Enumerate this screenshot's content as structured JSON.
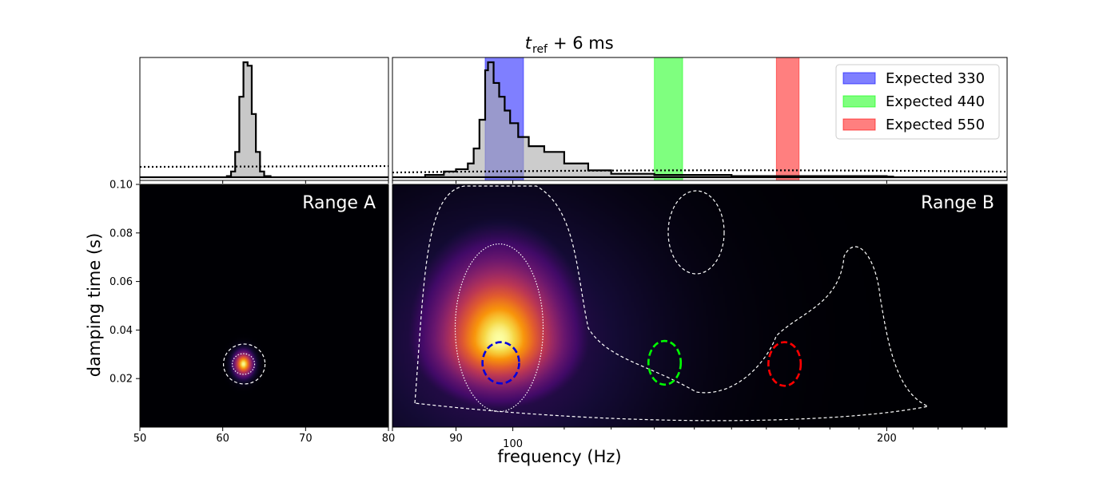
{
  "title_main": "t",
  "title_sub": "ref",
  "title_tail": "+ 6 ms",
  "chart_data": {
    "type": "heatmap",
    "xlabel": "frequency (Hz)",
    "ylabel": "damping time (s)",
    "panel_a": {
      "label": "Range A",
      "xlim": [
        50,
        80
      ],
      "ylim": [
        0,
        0.1
      ],
      "xticks": [
        50,
        60,
        70,
        80
      ],
      "yticks": [
        0.02,
        0.04,
        0.06,
        0.08,
        0.1
      ],
      "ytick_labels": [
        "0.02",
        "0.04",
        "0.06",
        "0.08",
        "0.10"
      ],
      "peak": {
        "f": 62.5,
        "tau": 0.026,
        "sf": 0.8,
        "st": 0.0035
      },
      "histogram": {
        "bins": [
          [
            60.5,
            0.01
          ],
          [
            61.0,
            0.05
          ],
          [
            61.5,
            0.22
          ],
          [
            62.0,
            0.7
          ],
          [
            62.5,
            1.0
          ],
          [
            63.0,
            0.97
          ],
          [
            63.5,
            0.55
          ],
          [
            64.0,
            0.22
          ],
          [
            64.5,
            0.05
          ],
          [
            65.0,
            0.01
          ]
        ],
        "prior_level": 0.09
      }
    },
    "panel_b": {
      "label": "Range B",
      "scale": "log",
      "xlim": [
        80,
        250
      ],
      "ylim": [
        0,
        0.1
      ],
      "xticks": [
        80,
        90,
        100,
        200
      ],
      "peak": {
        "f": 97.5,
        "tau": 0.036,
        "sf_log": 0.08,
        "st": 0.016
      },
      "histogram": {
        "bins": [
          [
            85,
            0.02
          ],
          [
            88,
            0.05
          ],
          [
            90,
            0.07
          ],
          [
            92,
            0.12
          ],
          [
            93,
            0.25
          ],
          [
            94,
            0.5
          ],
          [
            95,
            0.93
          ],
          [
            95.5,
            1.0
          ],
          [
            96.5,
            0.82
          ],
          [
            97.5,
            0.7
          ],
          [
            98.5,
            0.58
          ],
          [
            99.5,
            0.47
          ],
          [
            101,
            0.35
          ],
          [
            103,
            0.27
          ],
          [
            106,
            0.22
          ],
          [
            110,
            0.12
          ],
          [
            115,
            0.06
          ],
          [
            120,
            0.03
          ],
          [
            130,
            0.02
          ],
          [
            150,
            0.01
          ],
          [
            200,
            0.005
          ]
        ],
        "prior_level": 0.055
      }
    },
    "expected": [
      {
        "label": "Expected 330",
        "color": "#0000ff",
        "f_range": [
          95,
          102
        ],
        "ellipse": {
          "f": 97.8,
          "tau": 0.0265,
          "rf": 0.034,
          "rt": 0.0085
        }
      },
      {
        "label": "Expected 440",
        "color": "#00ff00",
        "f_range": [
          130,
          137
        ],
        "ellipse": {
          "f": 132.5,
          "tau": 0.0265,
          "rf": 0.03,
          "rt": 0.009
        }
      },
      {
        "label": "Expected 550",
        "color": "#ff0000",
        "f_range": [
          163,
          170
        ],
        "ellipse": {
          "f": 165.5,
          "tau": 0.026,
          "rf": 0.03,
          "rt": 0.009
        }
      }
    ],
    "legend_position": "top-right"
  }
}
